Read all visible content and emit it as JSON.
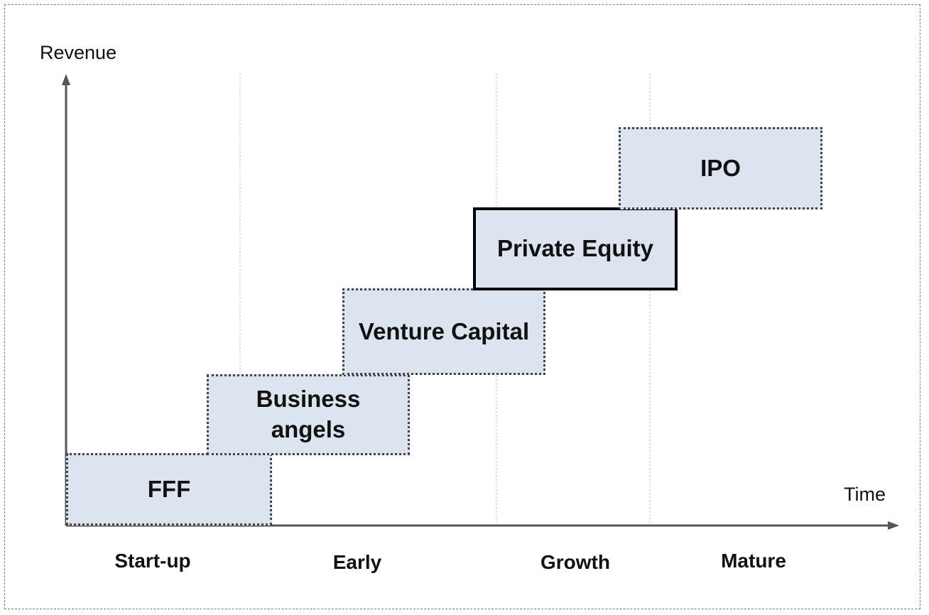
{
  "axes": {
    "y_label": "Revenue",
    "x_label": "Time"
  },
  "stages": [
    "Start-up",
    "Early",
    "Growth",
    "Mature"
  ],
  "funding_sources": [
    {
      "label": "FFF",
      "highlighted": false
    },
    {
      "label": "Business\nangels",
      "highlighted": false
    },
    {
      "label": "Venture Capital",
      "highlighted": false
    },
    {
      "label": "Private Equity",
      "highlighted": true
    },
    {
      "label": "IPO",
      "highlighted": false
    }
  ],
  "colors": {
    "box_fill": "#dce4ef",
    "axis": "#555555",
    "gridline": "#d0d0d0"
  }
}
